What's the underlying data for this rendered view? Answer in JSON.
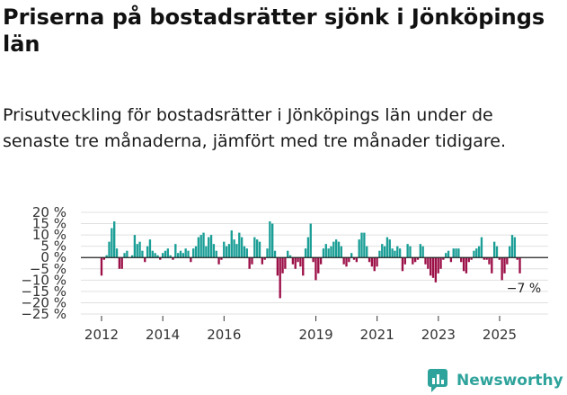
{
  "title": "Priserna på bostadsrätter sjönk i Jönköpings län",
  "subtitle": "Prisutveckling för bostadsrätter i Jönköpings län under de senaste tre månaderna, jämfört med tre månader tidigare.",
  "brand": {
    "name": "Newsworthy",
    "logo_icon": "bar-chart-logo-icon"
  },
  "colors": {
    "positive": "#1a9e96",
    "negative": "#9c1048",
    "grid": "#e0e0e0",
    "brand": "#2ea39b"
  },
  "chart_data": {
    "type": "bar",
    "title": "Priserna på bostadsrätter sjönk i Jönköpings län",
    "xlabel": "",
    "ylabel": "",
    "ylim": [
      -25,
      20
    ],
    "yticks": [
      20,
      15,
      10,
      5,
      0,
      -5,
      -10,
      -15,
      -20,
      -25
    ],
    "ytick_labels": [
      "20 %",
      "15 %",
      "10 %",
      "5 %",
      "0 %",
      "−5 %",
      "−10 %",
      "−15 %",
      "−20 %",
      "−25 %"
    ],
    "xticks": [
      {
        "label": "2012",
        "x": 2012.0
      },
      {
        "label": "2014",
        "x": 2014.0
      },
      {
        "label": "2016",
        "x": 2016.0
      },
      {
        "label": "2019",
        "x": 2019.0
      },
      {
        "label": "2021",
        "x": 2021.0
      },
      {
        "label": "2023",
        "x": 2023.0
      },
      {
        "label": "2025",
        "x": 2025.0
      }
    ],
    "x_start": 2012.0,
    "step": 0.0833,
    "values": [
      -8,
      -1,
      1,
      7,
      13,
      16,
      4,
      -5,
      -5,
      2,
      3,
      0,
      1,
      10,
      6,
      7,
      3,
      -2,
      5,
      8,
      3,
      2,
      1,
      -1,
      2,
      3,
      4,
      1,
      -1,
      6,
      2,
      3,
      2,
      4,
      3,
      -2,
      4,
      5,
      9,
      10,
      11,
      5,
      9,
      10,
      6,
      3,
      -3,
      -1,
      7,
      5,
      6,
      12,
      8,
      6,
      11,
      9,
      5,
      4,
      -5,
      -3,
      9,
      8,
      7,
      -3,
      -1,
      4,
      16,
      15,
      3,
      -8,
      -18,
      -7,
      -5,
      3,
      1,
      -3,
      -5,
      -2,
      -4,
      -8,
      4,
      9,
      15,
      -2,
      -10,
      -7,
      -3,
      4,
      6,
      4,
      5,
      7,
      8,
      7,
      5,
      -3,
      -4,
      -2,
      2,
      -1,
      -2,
      8,
      11,
      11,
      5,
      -2,
      -4,
      -6,
      -4,
      3,
      6,
      5,
      9,
      8,
      4,
      3,
      5,
      4,
      -6,
      -3,
      6,
      5,
      -3,
      -2,
      -1,
      6,
      5,
      -3,
      -5,
      -8,
      -9,
      -11,
      -7,
      -5,
      -1,
      2,
      3,
      -2,
      4,
      4,
      4,
      -2,
      -6,
      -7,
      -2,
      -1,
      3,
      4,
      5,
      9,
      -1,
      -1,
      -3,
      -7,
      7,
      5,
      -1,
      -10,
      -7,
      -3,
      5,
      10,
      9,
      -1,
      -7
    ]
  },
  "annotation": {
    "label": "−7 %",
    "value": -7
  }
}
